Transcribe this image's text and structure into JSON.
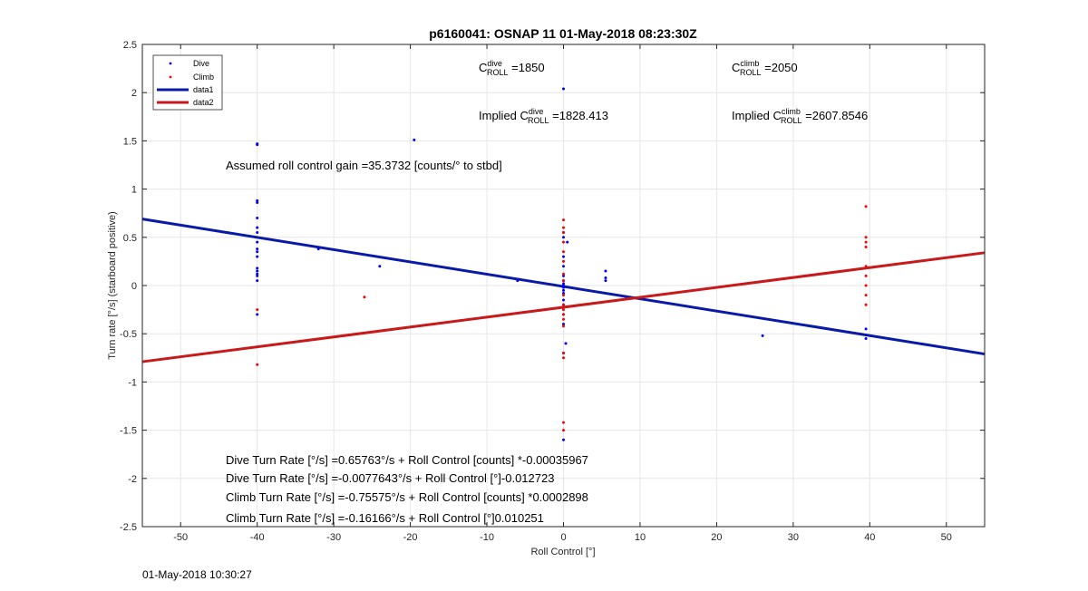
{
  "chart_data": {
    "type": "scatter",
    "title": "p6160041: OSNAP 11 01-May-2018 08:23:30Z",
    "xlabel": "Roll Control [°]",
    "ylabel": "Turn rate [°/s] (starboard positive)",
    "xlim": [
      -55,
      55
    ],
    "ylim": [
      -2.5,
      2.5
    ],
    "xticks": [
      -50,
      -40,
      -30,
      -20,
      -10,
      0,
      10,
      20,
      30,
      40,
      50
    ],
    "yticks": [
      -2.5,
      -2,
      -1.5,
      -1,
      -0.5,
      0,
      0.5,
      1,
      1.5,
      2,
      2.5
    ],
    "grid": true,
    "legend_position": "top-left",
    "series": [
      {
        "name": "Dive",
        "kind": "points",
        "color": "#0000ff",
        "points": [
          [
            -40,
            1.47
          ],
          [
            -40,
            1.46
          ],
          [
            -40,
            0.88
          ],
          [
            -40,
            0.86
          ],
          [
            -40,
            0.7
          ],
          [
            -40,
            0.6
          ],
          [
            -40,
            0.55
          ],
          [
            -40,
            0.45
          ],
          [
            -40,
            0.38
          ],
          [
            -40,
            0.35
          ],
          [
            -40,
            0.3
          ],
          [
            -40,
            0.18
          ],
          [
            -40,
            0.15
          ],
          [
            -40,
            0.12
          ],
          [
            -40,
            0.1
          ],
          [
            -40,
            0.05
          ],
          [
            -40,
            -0.3
          ],
          [
            -32,
            0.38
          ],
          [
            -24,
            0.2
          ],
          [
            -19.5,
            1.51
          ],
          [
            -6,
            0.05
          ],
          [
            0,
            2.04
          ],
          [
            0,
            0.55
          ],
          [
            0,
            0.5
          ],
          [
            0.5,
            0.45
          ],
          [
            0,
            0.3
          ],
          [
            0,
            0.2
          ],
          [
            0,
            0.1
          ],
          [
            0,
            0.05
          ],
          [
            0,
            0.02
          ],
          [
            0,
            0.0
          ],
          [
            0,
            -0.02
          ],
          [
            0,
            -0.05
          ],
          [
            0,
            -0.08
          ],
          [
            0,
            -0.15
          ],
          [
            0,
            -0.2
          ],
          [
            0,
            -0.3
          ],
          [
            0,
            -0.4
          ],
          [
            0.3,
            -0.6
          ],
          [
            0,
            -0.7
          ],
          [
            0,
            -1.6
          ],
          [
            5.5,
            0.15
          ],
          [
            5.5,
            0.08
          ],
          [
            5.5,
            0.05
          ],
          [
            26,
            -0.52
          ],
          [
            39.5,
            -0.45
          ],
          [
            39.5,
            -0.55
          ]
        ]
      },
      {
        "name": "Climb",
        "kind": "points",
        "color": "#ff0000",
        "points": [
          [
            -40,
            -0.25
          ],
          [
            -40,
            -0.82
          ],
          [
            -26,
            -0.12
          ],
          [
            0,
            0.68
          ],
          [
            0,
            0.6
          ],
          [
            0,
            0.55
          ],
          [
            0,
            0.45
          ],
          [
            0,
            0.35
          ],
          [
            0,
            0.25
          ],
          [
            0,
            0.12
          ],
          [
            0,
            0.05
          ],
          [
            0,
            -0.1
          ],
          [
            0,
            -0.2
          ],
          [
            0,
            -0.25
          ],
          [
            0,
            -0.3
          ],
          [
            0,
            -0.35
          ],
          [
            0,
            -0.42
          ],
          [
            0,
            -0.7
          ],
          [
            0,
            -0.75
          ],
          [
            0,
            -1.42
          ],
          [
            0,
            -1.5
          ],
          [
            39.5,
            0.82
          ],
          [
            39.5,
            0.5
          ],
          [
            39.5,
            0.45
          ],
          [
            39.5,
            0.4
          ],
          [
            39.5,
            0.2
          ],
          [
            39.5,
            0.1
          ],
          [
            39.5,
            0.0
          ],
          [
            39.5,
            -0.1
          ],
          [
            39.5,
            -0.2
          ]
        ]
      },
      {
        "name": "data1",
        "kind": "line",
        "color": "#0a1aa8",
        "points": [
          [
            -55,
            0.69
          ],
          [
            55,
            -0.71
          ]
        ]
      },
      {
        "name": "data2",
        "kind": "line",
        "color": "#c81a1a",
        "points": [
          [
            -55,
            -0.79
          ],
          [
            55,
            0.34
          ]
        ]
      }
    ],
    "annotations": {
      "c_roll_dive": {
        "prefix": "C",
        "sup": "dive",
        "sub": "ROLL",
        "value": " =1850"
      },
      "c_roll_climb": {
        "prefix": "C",
        "sup": "climb",
        "sub": "ROLL",
        "value": " =2050"
      },
      "implied_dive": {
        "prefix": "Implied C",
        "sup": "dive",
        "sub": "ROLL",
        "value": " =1828.413"
      },
      "implied_climb": {
        "prefix": "Implied C",
        "sup": "climb",
        "sub": "ROLL",
        "value": " =2607.8546"
      },
      "gain": "Assumed roll control gain =35.3732 [counts/° to stbd]",
      "eq1": "Dive Turn Rate [°/s] =0.65763°/s + Roll Control [counts] *-0.00035967",
      "eq2": "Dive Turn Rate [°/s] =-0.0077643°/s + Roll Control [°]-0.012723",
      "eq3": "Climb Turn Rate [°/s] =-0.75575°/s + Roll Control [counts] *0.0002898",
      "eq4": "Climb Turn Rate [°/s] =-0.16166°/s + Roll Control [°]0.010251"
    }
  },
  "footer": {
    "timestamp": "01-May-2018 10:30:27"
  }
}
